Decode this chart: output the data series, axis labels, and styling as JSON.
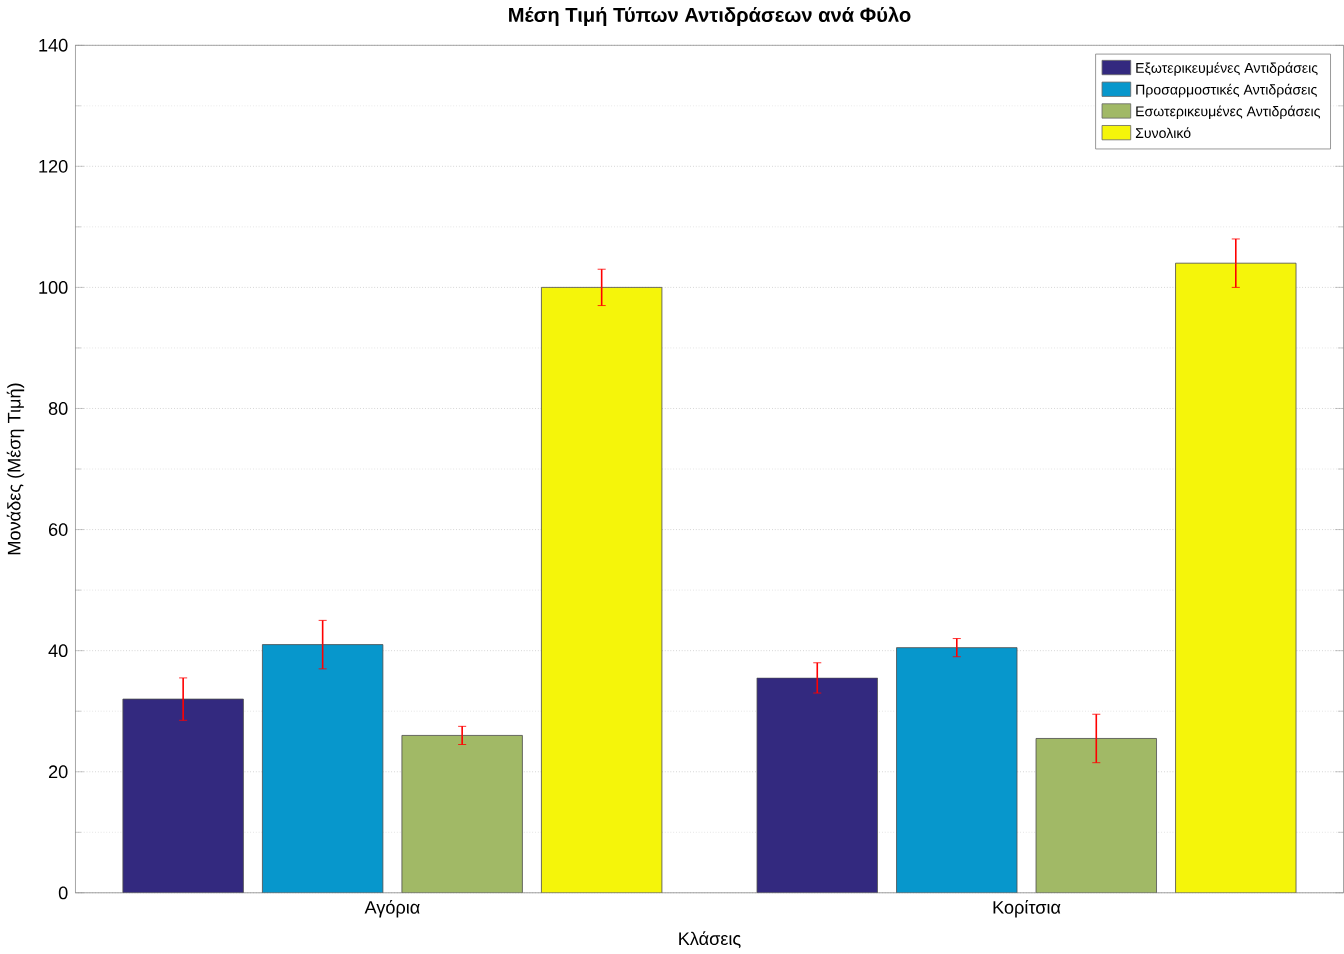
{
  "chart_data": {
    "type": "bar",
    "title": "Μέση Τιμή Τύπων Αντιδράσεων ανά Φύλο",
    "xlabel": "Κλάσεις",
    "ylabel": "Μονάδες (Μέση Τιμή)",
    "categories": [
      "Αγόρια",
      "Κορίτσια"
    ],
    "series": [
      {
        "name": "Εξωτερικευμένες Αντιδράσεις",
        "color": "#33297f",
        "values": [
          32,
          35.5
        ],
        "errors": [
          3.5,
          2.5
        ]
      },
      {
        "name": "Προσαρμοστικές Αντιδράσεις",
        "color": "#0797cc",
        "values": [
          41,
          40.5
        ],
        "errors": [
          4,
          1.5
        ]
      },
      {
        "name": "Εσωτερικευμένες Αντιδράσεις",
        "color": "#a1b966",
        "values": [
          26,
          25.5
        ],
        "errors": [
          1.5,
          4
        ]
      },
      {
        "name": "Συνολικό",
        "color": "#f5f50a",
        "values": [
          100,
          104
        ],
        "errors": [
          3,
          4
        ]
      }
    ],
    "ylim": [
      0,
      140
    ],
    "yticks": [
      0,
      20,
      40,
      60,
      80,
      100,
      120,
      140
    ],
    "grid": true,
    "legend": "top right"
  }
}
